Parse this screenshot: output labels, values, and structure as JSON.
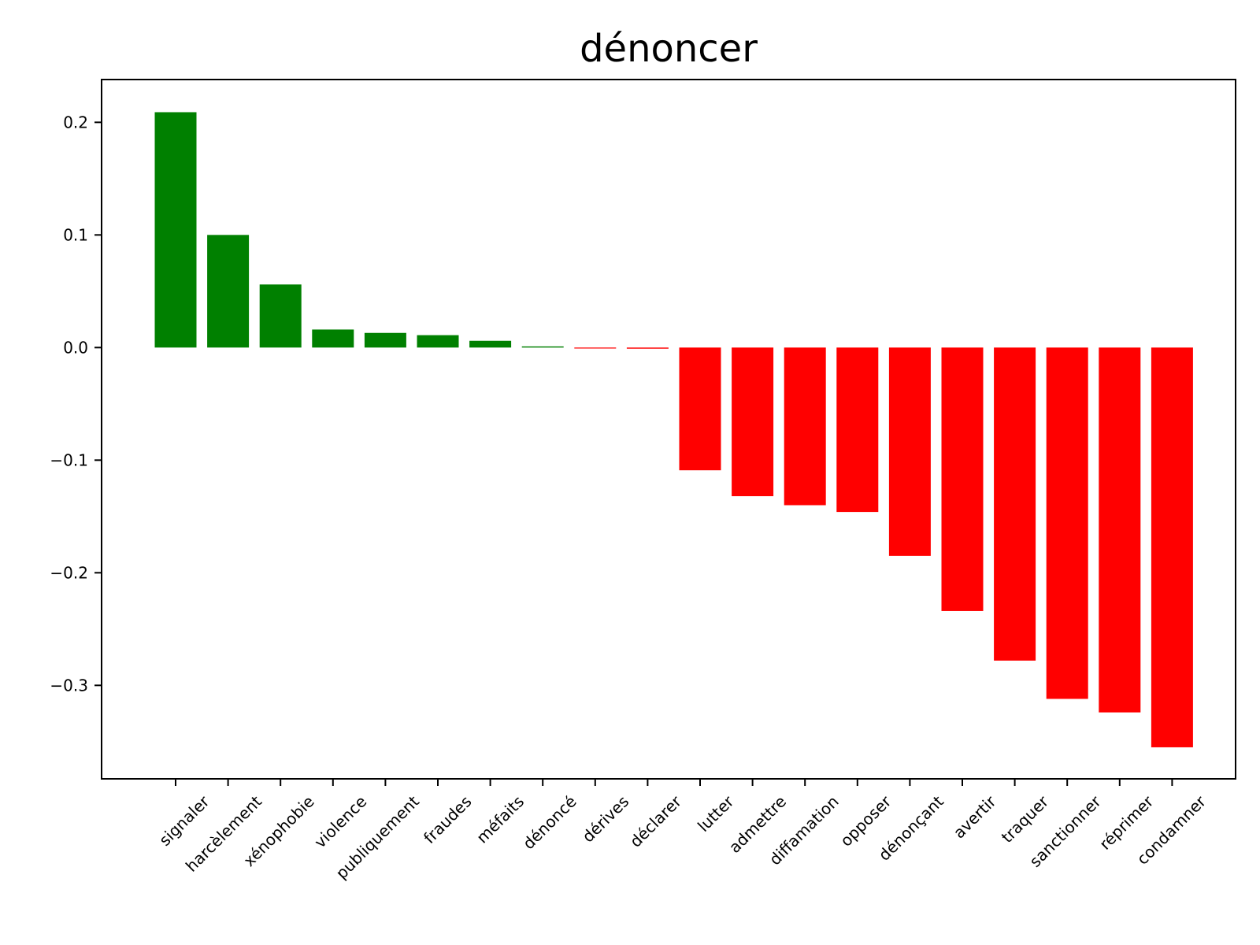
{
  "chart_data": {
    "type": "bar",
    "title": "dénoncer",
    "xlabel": "",
    "ylabel": "",
    "categories": [
      "signaler",
      "harcèlement",
      "xénophobie",
      "violence",
      "publiquement",
      "fraudes",
      "méfaits",
      "dénoncé",
      "dérives",
      "déclarer",
      "lutter",
      "admettre",
      "diffamation",
      "opposer",
      "dénonçant",
      "avertir",
      "traquer",
      "sanctionner",
      "réprimer",
      "condamner"
    ],
    "values": [
      0.209,
      0.1,
      0.056,
      0.016,
      0.013,
      0.011,
      0.006,
      0.001,
      -0.0005,
      -0.001,
      -0.109,
      -0.132,
      -0.14,
      -0.146,
      -0.185,
      -0.234,
      -0.278,
      -0.312,
      -0.324,
      -0.355
    ],
    "positive_color": "#008000",
    "negative_color": "#ff0000",
    "ylim": [
      -0.383,
      0.238
    ],
    "yticks": [
      0.2,
      0.1,
      0.0,
      -0.1,
      -0.2,
      -0.3
    ],
    "ytick_labels": [
      "0.2",
      "0.1",
      "0.0",
      "−0.1",
      "−0.2",
      "−0.3"
    ],
    "grid": false,
    "legend": "none"
  }
}
